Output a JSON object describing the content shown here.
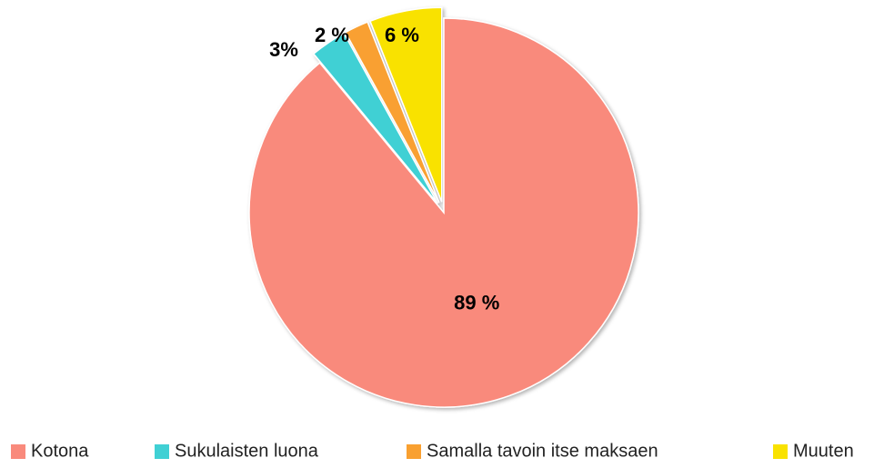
{
  "chart_data": {
    "type": "pie",
    "categories": [
      "Kotona",
      "Sukulaisten luona",
      "Samalla tavoin itse maksaen",
      "Muuten"
    ],
    "values": [
      89,
      3,
      2,
      6
    ],
    "value_labels": [
      "89 %",
      "3%",
      "2 %",
      "6 %"
    ],
    "colors": [
      "#f98a7c",
      "#40d0d4",
      "#f9a030",
      "#f9e200"
    ],
    "legend": "bottom"
  }
}
